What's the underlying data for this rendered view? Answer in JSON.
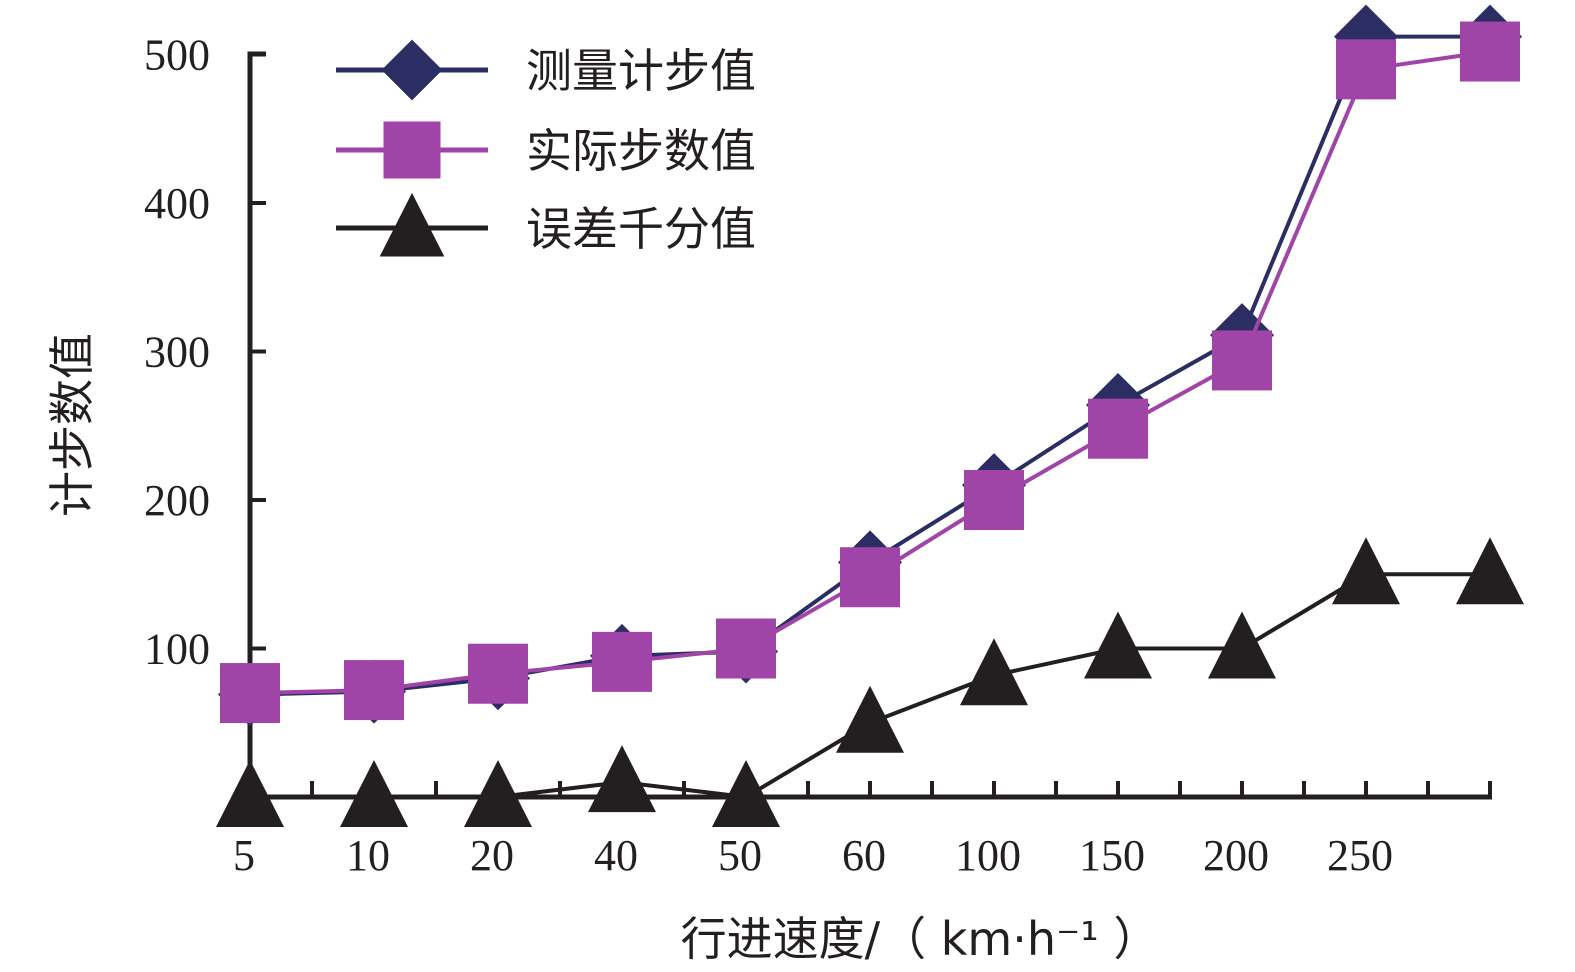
{
  "chart_data": {
    "type": "line",
    "title": "",
    "xlabel": "行进速度/（ km·h⁻¹ ）",
    "ylabel": "计步数值",
    "categories": [
      "5",
      "10",
      "20",
      "40",
      "50",
      "60",
      "100",
      "150",
      "200",
      "250",
      ""
    ],
    "y_ticks": [
      "100",
      "200",
      "300",
      "400",
      "500"
    ],
    "ylim": [
      0,
      500
    ],
    "grid": false,
    "legend_position": "top-left",
    "series": [
      {
        "name": "测量计步值",
        "marker": "diamond",
        "color": "#2b2d63",
        "values": [
          69,
          71,
          80,
          95,
          98,
          158,
          210,
          264,
          311,
          512,
          512
        ]
      },
      {
        "name": "实际步数值",
        "marker": "square",
        "color": "#a044a8",
        "values": [
          70,
          72,
          83,
          91,
          100,
          148,
          200,
          248,
          294,
          490,
          502
        ]
      },
      {
        "name": "误差千分值",
        "marker": "triangle",
        "color": "#231f20",
        "values": [
          0,
          0,
          0,
          10,
          0,
          50,
          82,
          100,
          100,
          150,
          150
        ]
      }
    ]
  }
}
